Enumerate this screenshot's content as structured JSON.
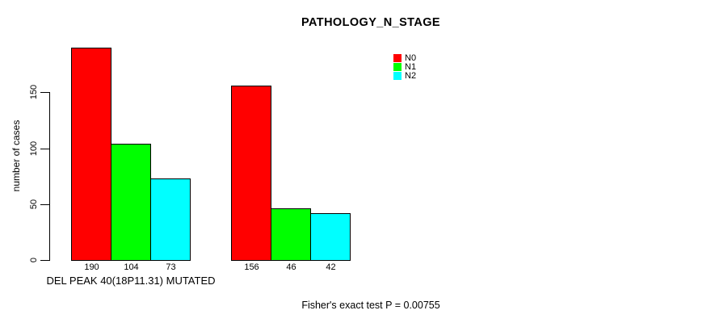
{
  "title": "PATHOLOGY_N_STAGE",
  "chart_data": {
    "type": "bar",
    "title": "PATHOLOGY_N_STAGE",
    "ylabel": "number of cases",
    "xlabel": "DEL PEAK 40(18P11.31) MUTATED",
    "yticks": [
      0,
      50,
      100,
      150
    ],
    "ylim": [
      0,
      190
    ],
    "grid": false,
    "legend_position": "top-right",
    "series_names": [
      "N0",
      "N1",
      "N2"
    ],
    "colors": [
      "#ff0000",
      "#00ff00",
      "#00ffff"
    ],
    "groups": [
      {
        "values": [
          190,
          104,
          73
        ]
      },
      {
        "values": [
          156,
          46,
          42
        ]
      }
    ],
    "annotation": "Fisher's exact test P = 0.00755"
  },
  "legend": {
    "items": [
      {
        "label": "N0",
        "color": "#ff0000"
      },
      {
        "label": "N1",
        "color": "#00ff00"
      },
      {
        "label": "N2",
        "color": "#00ffff"
      }
    ]
  },
  "footer": {
    "stat_text": "Fisher's exact test P = 0.00755"
  }
}
